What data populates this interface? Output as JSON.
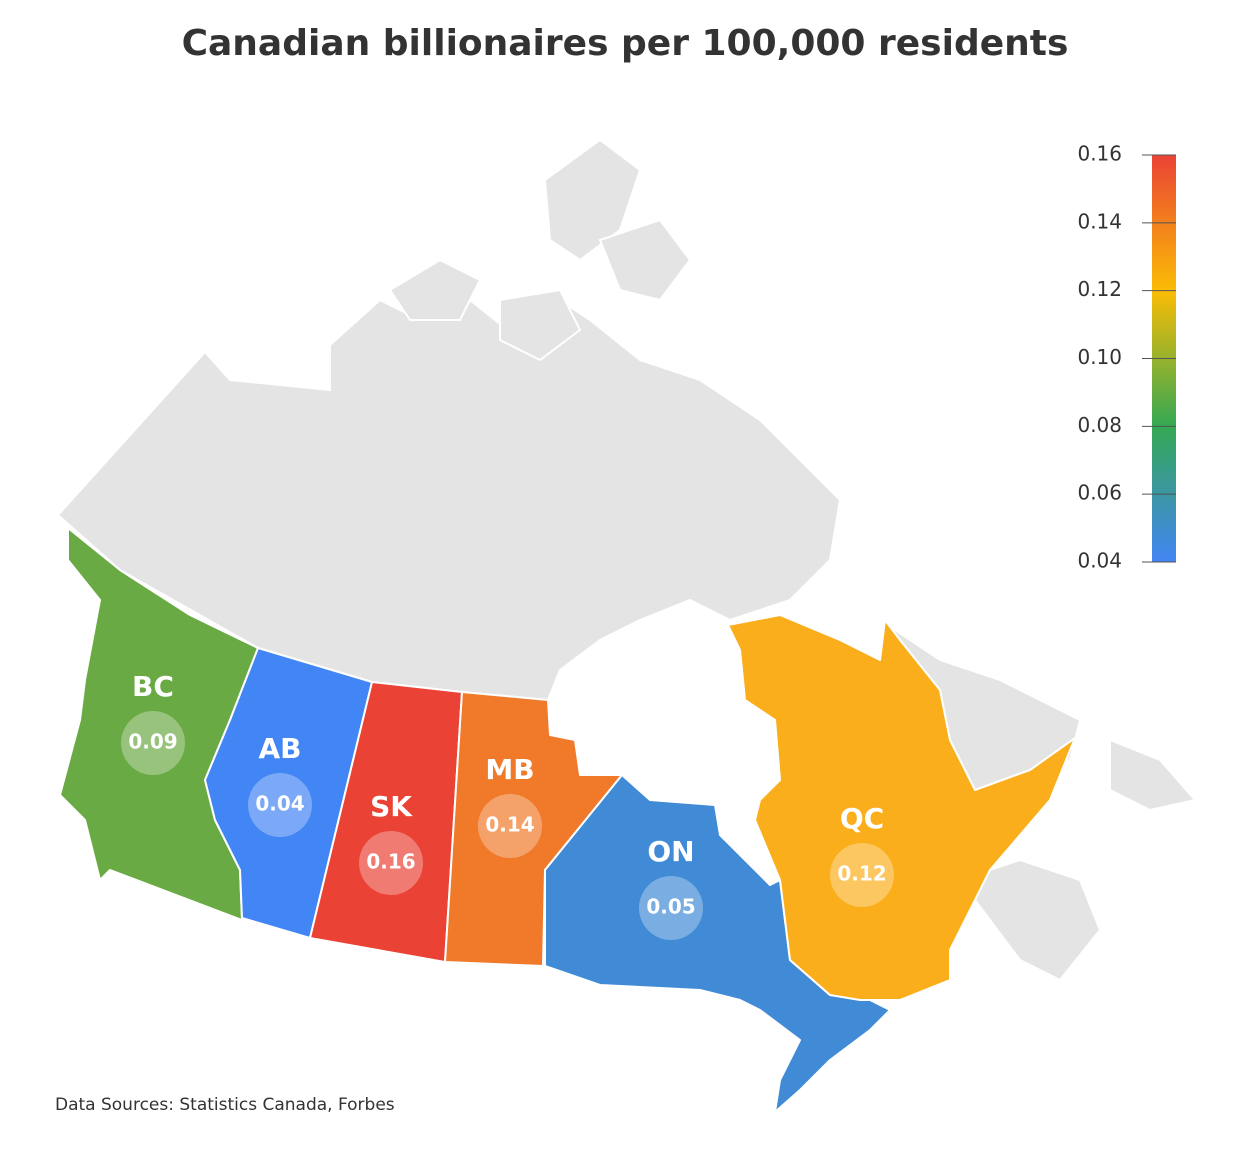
{
  "chart_data": {
    "type": "choropleth",
    "title": "Canadian billionaires per 100,000 residents",
    "categories": [
      "BC",
      "AB",
      "SK",
      "MB",
      "ON",
      "QC"
    ],
    "values": [
      0.09,
      0.04,
      0.16,
      0.14,
      0.05,
      0.12
    ],
    "colors": [
      "#6aaa45",
      "#4285f4",
      "#ea4335",
      "#f07a2a",
      "#418bd6",
      "#fbae1c"
    ],
    "colorscale": [
      "#4285f4",
      "#34a853",
      "#fbbc05",
      "#ea4335"
    ],
    "clim": [
      0.04,
      0.16
    ],
    "cticks": [
      0.04,
      0.06,
      0.08,
      {
        "value": 0.1,
        "label": "0.10"
      },
      0.12,
      0.14,
      0.16
    ],
    "source": "Data Sources: Statistics Canada, Forbes"
  }
}
